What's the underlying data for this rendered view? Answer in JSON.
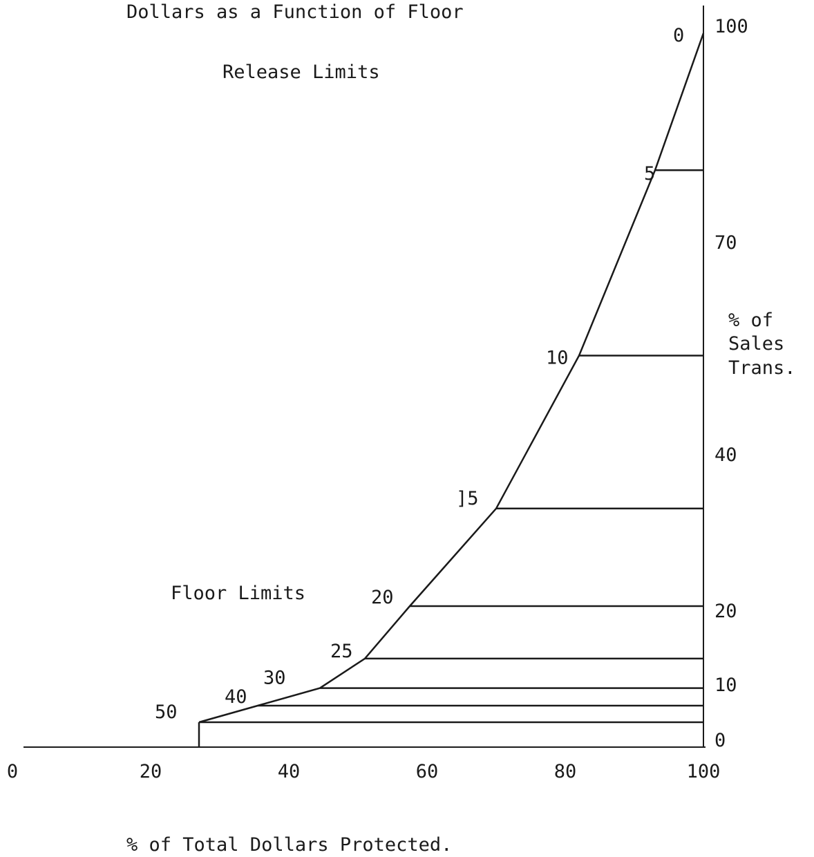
{
  "chart_data": {
    "type": "line",
    "title_lines": [
      "Dollars as a Function of Floor",
      "Release Limits"
    ],
    "xlabel": "% of Total Dollars Protected.",
    "ylabel_lines": [
      "% of",
      "Sales",
      "Trans."
    ],
    "region_label": "Floor Limits",
    "xlim": [
      0,
      100
    ],
    "ylim": [
      0,
      100
    ],
    "x_ticks": [
      "0",
      "20",
      "40",
      "60",
      "80",
      "100"
    ],
    "x_tick_values": [
      0,
      20,
      40,
      60,
      80,
      100
    ],
    "y_ticks": [
      "0",
      "10",
      "20",
      "40",
      "70",
      "100"
    ],
    "y_tick_values": [
      0,
      10,
      20,
      40,
      70,
      100
    ],
    "series": [
      {
        "points": [
          {
            "label": "50",
            "x": 27,
            "y": 4.5
          },
          {
            "label": "40",
            "x": 35.5,
            "y": 7.5
          },
          {
            "label": "30",
            "x": 44.5,
            "y": 10.5
          },
          {
            "label": "25",
            "x": 51,
            "y": 14.5
          },
          {
            "label": "20",
            "x": 57.5,
            "y": 21.5
          },
          {
            "label": "]5",
            "x": 70,
            "y": 34
          },
          {
            "label": "10",
            "x": 82,
            "y": 55
          },
          {
            "label": "5",
            "x": 93,
            "y": 81
          },
          {
            "label": "0",
            "x": 100,
            "y": 100
          }
        ]
      }
    ],
    "grid": false
  }
}
